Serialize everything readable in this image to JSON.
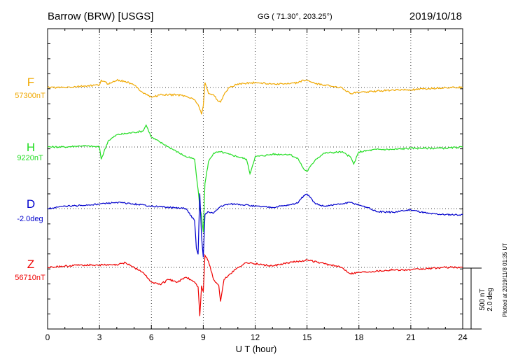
{
  "header": {
    "station": "Barrow (BRW)  [USGS]",
    "coords": "GG ( 71.30°, 203.25°)",
    "date": "2019/10/18"
  },
  "plotted_note": "Plotted at 2019/11/8 01:35 UT",
  "scale_note": {
    "nt": "500 nT",
    "deg": "2.0 deg"
  },
  "colors": {
    "F": "#f0a800",
    "H": "#22dd22",
    "D": "#0000cc",
    "Z": "#ee0000"
  },
  "chart_data": {
    "type": "line",
    "xlabel": "U T (hour)",
    "xlim": [
      0,
      24
    ],
    "x_ticks": [
      "0",
      "3",
      "6",
      "9",
      "12",
      "15",
      "18",
      "21",
      "24"
    ],
    "series": [
      {
        "name": "F",
        "baseline_label": "57300nT",
        "unit": "nT",
        "x": [
          0,
          1,
          2,
          3,
          3.1,
          3.5,
          4,
          4.5,
          5,
          5.5,
          6,
          6.5,
          7,
          7.5,
          8,
          8.5,
          8.7,
          8.8,
          8.9,
          9,
          9.1,
          9.3,
          9.6,
          9.8,
          10,
          10.2,
          10.5,
          11,
          12,
          13,
          14,
          14.5,
          14.8,
          15,
          15.5,
          16,
          17,
          17.5,
          18,
          19,
          20,
          21,
          22,
          23,
          24
        ],
        "values": [
          0,
          0,
          10,
          20,
          60,
          30,
          60,
          50,
          20,
          -40,
          -80,
          -60,
          -60,
          -60,
          -70,
          -100,
          -140,
          -180,
          -220,
          -150,
          40,
          -50,
          -60,
          -100,
          -120,
          -60,
          0,
          30,
          40,
          30,
          30,
          40,
          60,
          60,
          30,
          20,
          0,
          -50,
          -40,
          -30,
          -20,
          -20,
          -10,
          0,
          0
        ]
      },
      {
        "name": "H",
        "baseline_label": "9220nT",
        "unit": "nT",
        "x": [
          0,
          1,
          2,
          3,
          3.1,
          3.5,
          4,
          4.5,
          5,
          5.5,
          5.7,
          6,
          6.5,
          7,
          7.5,
          8,
          8.5,
          8.7,
          8.8,
          8.9,
          9,
          9.1,
          9.3,
          9.6,
          10,
          10.5,
          11,
          11.5,
          11.7,
          12,
          13,
          14,
          14.5,
          14.8,
          15,
          15.5,
          16,
          17,
          17.5,
          17.7,
          18,
          19,
          20,
          21,
          22,
          23,
          24
        ],
        "values": [
          0,
          0,
          10,
          0,
          -100,
          50,
          100,
          110,
          120,
          130,
          180,
          80,
          40,
          0,
          -40,
          -80,
          -100,
          -350,
          -500,
          -560,
          -700,
          -300,
          -120,
          -50,
          -40,
          -60,
          -80,
          -100,
          -220,
          -80,
          -60,
          -60,
          -100,
          -180,
          -200,
          -100,
          -50,
          -40,
          -80,
          -140,
          -40,
          -20,
          -20,
          -10,
          -10,
          -10,
          0
        ]
      },
      {
        "name": "D",
        "baseline_label": "-2.0deg",
        "unit": "deg",
        "x": [
          0,
          1,
          2,
          3,
          4,
          5,
          6,
          7,
          8,
          8.5,
          8.6,
          8.7,
          8.8,
          8.9,
          9,
          9.1,
          9.3,
          9.6,
          10,
          10.5,
          11,
          12,
          13,
          14,
          14.5,
          14.8,
          15,
          15.5,
          16,
          17,
          17.5,
          18,
          18.5,
          19,
          20,
          21,
          22,
          23,
          24
        ],
        "values": [
          0,
          0.08,
          0.1,
          0.15,
          0.2,
          0.15,
          0.08,
          0.04,
          0,
          -0.4,
          -1.3,
          -1.5,
          0.5,
          -0.9,
          -1.6,
          -0.2,
          -0.1,
          -0.15,
          0.08,
          0.15,
          0.15,
          0.08,
          0.04,
          0.12,
          0.2,
          0.42,
          0.48,
          0.15,
          0.08,
          0.15,
          0.2,
          0.12,
          0.04,
          -0.1,
          -0.12,
          -0.04,
          -0.16,
          -0.2,
          -0.2
        ]
      },
      {
        "name": "Z",
        "baseline_label": "56710nT",
        "unit": "nT",
        "x": [
          0,
          1,
          2,
          3,
          4,
          4.5,
          5,
          5.5,
          6,
          6.5,
          7,
          7.5,
          8,
          8.5,
          8.7,
          8.8,
          8.9,
          9,
          9.1,
          9.3,
          9.6,
          9.9,
          10,
          10.2,
          10.5,
          11,
          11.5,
          12,
          13,
          14,
          15,
          16,
          17,
          17.5,
          18,
          19,
          20,
          21,
          22,
          23,
          24
        ],
        "values": [
          0,
          10,
          20,
          20,
          20,
          40,
          0,
          -40,
          -120,
          -140,
          -100,
          -120,
          -80,
          -120,
          -160,
          -400,
          -150,
          -200,
          100,
          50,
          -100,
          -150,
          -280,
          -100,
          -60,
          0,
          40,
          30,
          10,
          40,
          60,
          30,
          0,
          -50,
          -40,
          -30,
          -20,
          -20,
          -10,
          0,
          0
        ]
      }
    ]
  }
}
